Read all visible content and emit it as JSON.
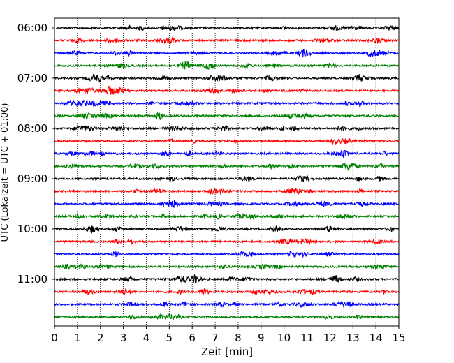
{
  "chart_data": {
    "type": "line",
    "title": "",
    "xlabel": "Zeit  [min]",
    "ylabel": "UTC (Lokalzeit = UTC + 01:00)",
    "xlim": [
      0,
      15
    ],
    "x_ticks": [
      "0",
      "1",
      "2",
      "3",
      "4",
      "5",
      "6",
      "7",
      "8",
      "9",
      "10",
      "11",
      "12",
      "13",
      "14",
      "15"
    ],
    "y_tick_labels": [
      "06:00",
      "07:00",
      "08:00",
      "09:00",
      "10:00",
      "11:00"
    ],
    "grid": "vertical dotted",
    "traces_per_hour": 4,
    "trace_minutes": 15,
    "trace_start": "06:00",
    "trace_count": 24,
    "colors": [
      "#000000",
      "#ff0000",
      "#0000ff",
      "#008000"
    ]
  }
}
